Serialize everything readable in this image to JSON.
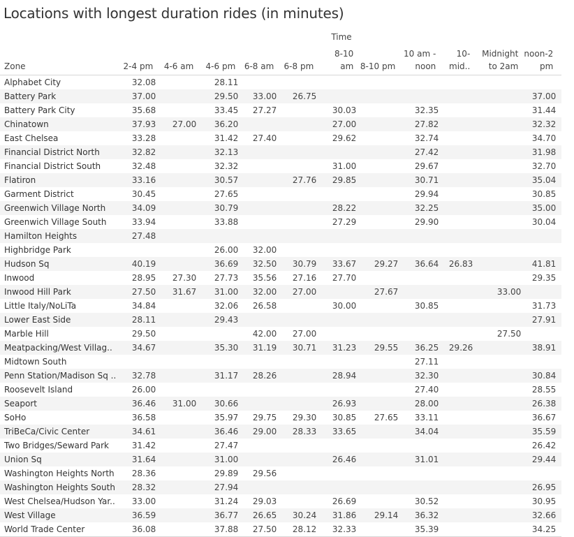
{
  "chart_data": {
    "type": "table",
    "title": "Locations with longest duration rides (in minutes)",
    "column_group_label": "Time",
    "row_header": "Zone",
    "columns": [
      {
        "label": "2-4 pm"
      },
      {
        "label": "4-6 am"
      },
      {
        "label": "4-6 pm"
      },
      {
        "label": "6-8 am"
      },
      {
        "label": "6-8 pm"
      },
      {
        "label": "8-10 am"
      },
      {
        "label": "8-10 pm"
      },
      {
        "label": "10 am - noon",
        "line1": "10 am -",
        "line2": "noon"
      },
      {
        "label": "10-mid.."
      },
      {
        "label": "Midnight to 2am",
        "line1": "Midnight",
        "line2": "to 2am"
      },
      {
        "label": "noon-2 pm",
        "line1": "noon-2",
        "line2": "pm"
      }
    ],
    "rows": [
      {
        "zone": "Alphabet City",
        "values": [
          "32.08",
          "",
          "28.11",
          "",
          "",
          "",
          "",
          "",
          "",
          "",
          ""
        ]
      },
      {
        "zone": "Battery Park",
        "values": [
          "37.00",
          "",
          "29.50",
          "33.00",
          "26.75",
          "",
          "",
          "",
          "",
          "",
          "37.00"
        ]
      },
      {
        "zone": "Battery Park City",
        "values": [
          "35.68",
          "",
          "33.45",
          "27.27",
          "",
          "30.03",
          "",
          "32.35",
          "",
          "",
          "31.44"
        ]
      },
      {
        "zone": "Chinatown",
        "values": [
          "37.93",
          "27.00",
          "36.20",
          "",
          "",
          "27.00",
          "",
          "27.82",
          "",
          "",
          "32.32"
        ]
      },
      {
        "zone": "East Chelsea",
        "values": [
          "33.28",
          "",
          "31.42",
          "27.40",
          "",
          "29.62",
          "",
          "32.74",
          "",
          "",
          "34.70"
        ]
      },
      {
        "zone": "Financial District North",
        "values": [
          "32.82",
          "",
          "32.13",
          "",
          "",
          "",
          "",
          "27.42",
          "",
          "",
          "31.98"
        ]
      },
      {
        "zone": "Financial District South",
        "values": [
          "32.48",
          "",
          "32.32",
          "",
          "",
          "31.00",
          "",
          "29.67",
          "",
          "",
          "32.70"
        ]
      },
      {
        "zone": "Flatiron",
        "values": [
          "33.16",
          "",
          "30.57",
          "",
          "27.76",
          "29.85",
          "",
          "30.71",
          "",
          "",
          "35.04"
        ]
      },
      {
        "zone": "Garment District",
        "values": [
          "30.45",
          "",
          "27.65",
          "",
          "",
          "",
          "",
          "29.94",
          "",
          "",
          "30.85"
        ]
      },
      {
        "zone": "Greenwich Village North",
        "values": [
          "34.09",
          "",
          "30.79",
          "",
          "",
          "28.22",
          "",
          "32.25",
          "",
          "",
          "35.00"
        ]
      },
      {
        "zone": "Greenwich Village South",
        "values": [
          "33.94",
          "",
          "33.88",
          "",
          "",
          "27.29",
          "",
          "29.90",
          "",
          "",
          "30.04"
        ]
      },
      {
        "zone": "Hamilton Heights",
        "values": [
          "27.48",
          "",
          "",
          "",
          "",
          "",
          "",
          "",
          "",
          "",
          ""
        ]
      },
      {
        "zone": "Highbridge Park",
        "values": [
          "",
          "",
          "26.00",
          "32.00",
          "",
          "",
          "",
          "",
          "",
          "",
          ""
        ]
      },
      {
        "zone": "Hudson Sq",
        "values": [
          "40.19",
          "",
          "36.69",
          "32.50",
          "30.79",
          "33.67",
          "29.27",
          "36.64",
          "26.83",
          "",
          "41.81"
        ]
      },
      {
        "zone": "Inwood",
        "values": [
          "28.95",
          "27.30",
          "27.73",
          "35.56",
          "27.16",
          "27.70",
          "",
          "",
          "",
          "",
          "29.35"
        ]
      },
      {
        "zone": "Inwood Hill Park",
        "values": [
          "27.50",
          "31.67",
          "31.00",
          "32.00",
          "27.00",
          "",
          "27.67",
          "",
          "",
          "33.00",
          ""
        ]
      },
      {
        "zone": "Little Italy/NoLiTa",
        "values": [
          "34.84",
          "",
          "32.06",
          "26.58",
          "",
          "30.00",
          "",
          "30.85",
          "",
          "",
          "31.73"
        ]
      },
      {
        "zone": "Lower East Side",
        "values": [
          "28.11",
          "",
          "29.43",
          "",
          "",
          "",
          "",
          "",
          "",
          "",
          "27.91"
        ]
      },
      {
        "zone": "Marble Hill",
        "values": [
          "29.50",
          "",
          "",
          "42.00",
          "27.00",
          "",
          "",
          "",
          "",
          "27.50",
          ""
        ]
      },
      {
        "zone": "Meatpacking/West Villag..",
        "values": [
          "34.67",
          "",
          "35.30",
          "31.19",
          "30.71",
          "31.23",
          "29.55",
          "36.25",
          "29.26",
          "",
          "38.91"
        ]
      },
      {
        "zone": "Midtown South",
        "values": [
          "",
          "",
          "",
          "",
          "",
          "",
          "",
          "27.11",
          "",
          "",
          ""
        ]
      },
      {
        "zone": "Penn Station/Madison Sq ..",
        "values": [
          "32.78",
          "",
          "31.17",
          "28.26",
          "",
          "28.94",
          "",
          "32.30",
          "",
          "",
          "30.84"
        ]
      },
      {
        "zone": "Roosevelt Island",
        "values": [
          "26.00",
          "",
          "",
          "",
          "",
          "",
          "",
          "27.40",
          "",
          "",
          "28.55"
        ]
      },
      {
        "zone": "Seaport",
        "values": [
          "36.46",
          "31.00",
          "30.66",
          "",
          "",
          "26.93",
          "",
          "28.00",
          "",
          "",
          "26.38"
        ]
      },
      {
        "zone": "SoHo",
        "values": [
          "36.58",
          "",
          "35.97",
          "29.75",
          "29.30",
          "30.85",
          "27.65",
          "33.11",
          "",
          "",
          "36.67"
        ]
      },
      {
        "zone": "TriBeCa/Civic Center",
        "values": [
          "34.61",
          "",
          "36.46",
          "29.00",
          "28.33",
          "33.65",
          "",
          "34.04",
          "",
          "",
          "35.59"
        ]
      },
      {
        "zone": "Two Bridges/Seward Park",
        "values": [
          "31.42",
          "",
          "27.47",
          "",
          "",
          "",
          "",
          "",
          "",
          "",
          "26.42"
        ]
      },
      {
        "zone": "Union Sq",
        "values": [
          "31.64",
          "",
          "31.00",
          "",
          "",
          "26.46",
          "",
          "31.01",
          "",
          "",
          "29.44"
        ]
      },
      {
        "zone": "Washington Heights North",
        "values": [
          "28.36",
          "",
          "29.89",
          "29.56",
          "",
          "",
          "",
          "",
          "",
          "",
          ""
        ]
      },
      {
        "zone": "Washington Heights South",
        "values": [
          "28.32",
          "",
          "27.94",
          "",
          "",
          "",
          "",
          "",
          "",
          "",
          "26.95"
        ]
      },
      {
        "zone": "West Chelsea/Hudson Yar..",
        "values": [
          "33.00",
          "",
          "31.24",
          "29.03",
          "",
          "26.69",
          "",
          "30.52",
          "",
          "",
          "30.95"
        ]
      },
      {
        "zone": "West Village",
        "values": [
          "36.59",
          "",
          "36.77",
          "26.65",
          "30.24",
          "31.86",
          "29.14",
          "36.32",
          "",
          "",
          "32.66"
        ]
      },
      {
        "zone": "World Trade Center",
        "values": [
          "36.08",
          "",
          "37.88",
          "27.50",
          "28.12",
          "32.33",
          "",
          "35.39",
          "",
          "",
          "34.25"
        ]
      }
    ]
  },
  "colors": {
    "text": "#333333",
    "band": "#f4f4f4",
    "rule": "#d6d6d6"
  }
}
